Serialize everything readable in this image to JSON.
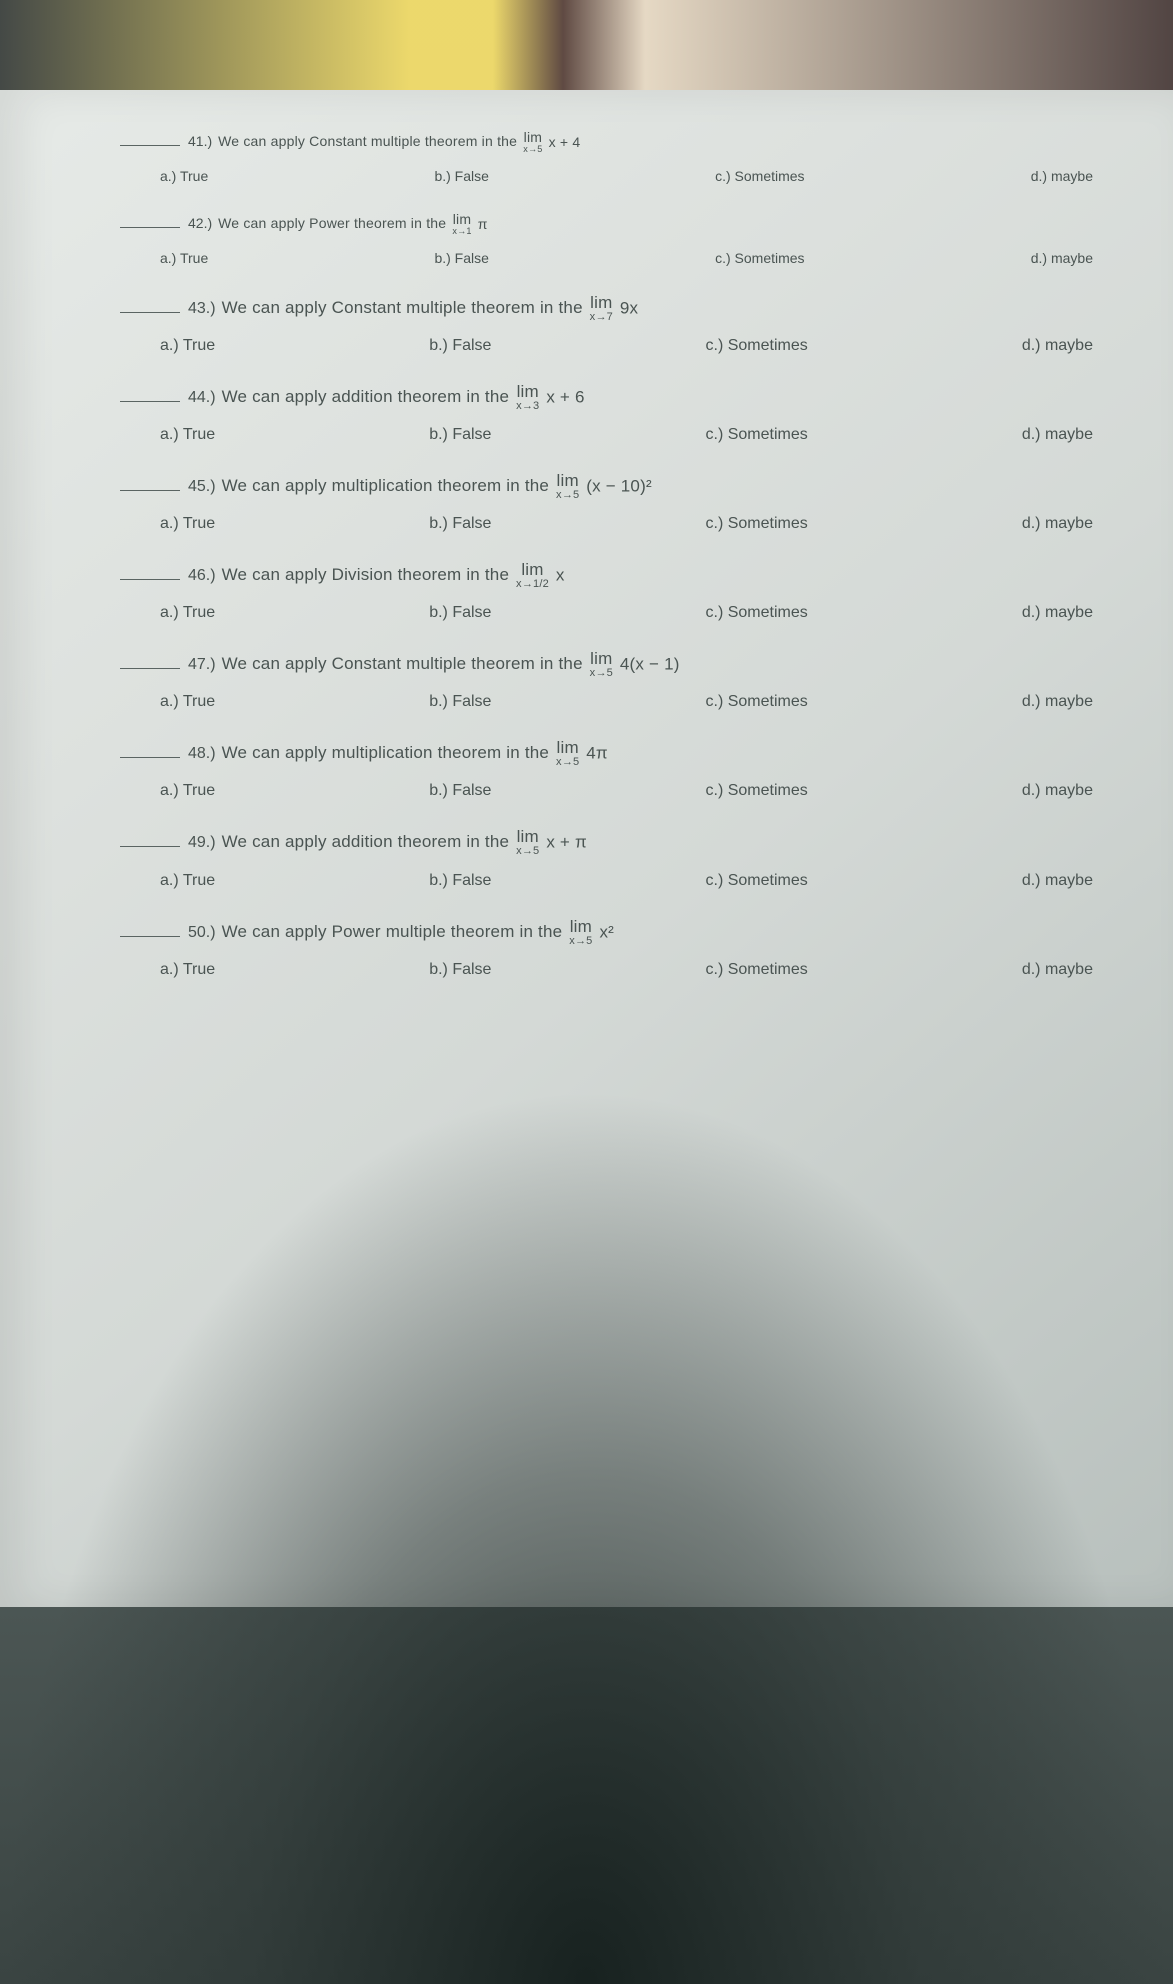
{
  "questions": [
    {
      "num": "41.)",
      "stem_pre": "We can apply Constant multiple theorem in the ",
      "lim_sub": "x→5",
      "expr_post": " x + 4",
      "opts": {
        "a": "a.)  True",
        "b": "b.) False",
        "c": "c.) Sometimes",
        "d": "d.) maybe"
      },
      "small": true
    },
    {
      "num": "42.)",
      "stem_pre": "We can apply Power theorem in the ",
      "lim_sub": "x→1",
      "expr_post": " π",
      "opts": {
        "a": "a.)  True",
        "b": "b.) False",
        "c": "c.) Sometimes",
        "d": "d.) maybe"
      },
      "small": true
    },
    {
      "num": "43.)",
      "stem_pre": "We can apply Constant multiple theorem in the ",
      "lim_sub": "x→7",
      "expr_post": " 9x",
      "opts": {
        "a": "a.)  True",
        "b": "b.) False",
        "c": "c.) Sometimes",
        "d": "d.) maybe"
      },
      "small": false
    },
    {
      "num": "44.)",
      "stem_pre": "We can apply addition theorem in the ",
      "lim_sub": "x→3",
      "expr_post": " x + 6",
      "opts": {
        "a": "a.)  True",
        "b": "b.) False",
        "c": "c.) Sometimes",
        "d": "d.) maybe"
      },
      "small": false
    },
    {
      "num": "45.)",
      "stem_pre": "We can apply multiplication theorem in the ",
      "lim_sub": "x→5",
      "expr_post": " (x − 10)²",
      "opts": {
        "a": "a.)  True",
        "b": "b.) False",
        "c": "c.) Sometimes",
        "d": "d.) maybe"
      },
      "small": false
    },
    {
      "num": "46.)",
      "stem_pre": "We can apply Division theorem in the ",
      "lim_sub": "x→1/2",
      "expr_post": " x",
      "opts": {
        "a": "a.)  True",
        "b": "b.) False",
        "c": "c.) Sometimes",
        "d": "d.) maybe"
      },
      "small": false
    },
    {
      "num": "47.)",
      "stem_pre": "We can apply Constant multiple theorem in the ",
      "lim_sub": "x→5",
      "expr_post": " 4(x − 1)",
      "opts": {
        "a": "a.)  True",
        "b": "b.) False",
        "c": "c.) Sometimes",
        "d": "d.) maybe"
      },
      "small": false
    },
    {
      "num": "48.)",
      "stem_pre": "We can apply multiplication theorem in the ",
      "lim_sub": "x→5",
      "expr_post": " 4π",
      "opts": {
        "a": "a.)  True",
        "b": "b.) False",
        "c": "c.) Sometimes",
        "d": "d.) maybe"
      },
      "small": false
    },
    {
      "num": "49.)",
      "stem_pre": "We can apply addition theorem in the ",
      "lim_sub": "x→5",
      "expr_post": " x + π",
      "opts": {
        "a": "a.)  True",
        "b": "b.) False",
        "c": "c.) Sometimes",
        "d": "d.) maybe"
      },
      "small": false
    },
    {
      "num": "50.)",
      "stem_pre": "We can apply Power multiple theorem in the ",
      "lim_sub": "x→5",
      "expr_post": " x²",
      "opts": {
        "a": "a.)  True",
        "b": "b.) False",
        "c": "c.) Sometimes",
        "d": "d.) maybe"
      },
      "small": false
    }
  ],
  "lim_word": "lim"
}
